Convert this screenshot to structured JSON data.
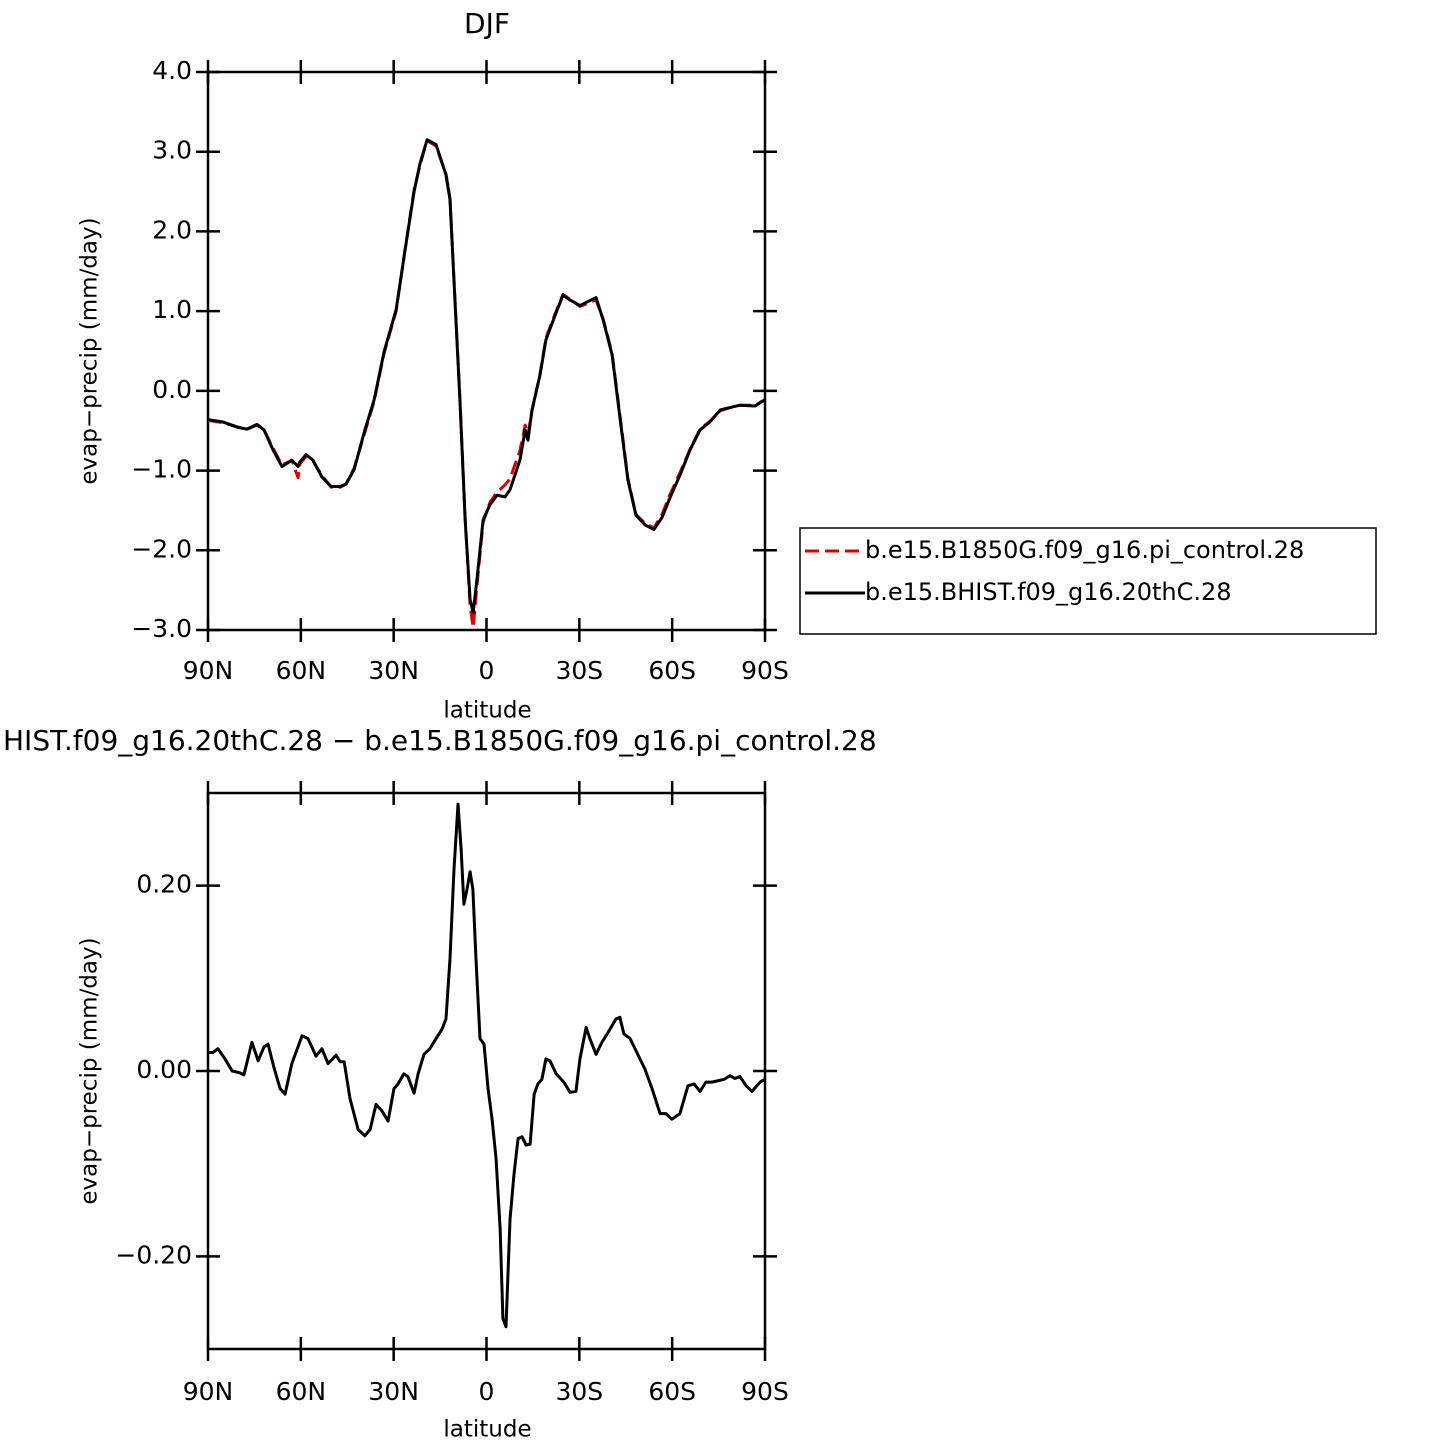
{
  "chart_data": [
    {
      "type": "line",
      "title": "DJF",
      "x_label": "latitude",
      "y_label": "evap−precip (mm/day)",
      "x": [
        90.0,
        85.2,
        80.0,
        77.4,
        74.2,
        71.9,
        69.0,
        66.1,
        62.9,
        60.9,
        60.3,
        58.3,
        56.1,
        53.2,
        50.2,
        47.3,
        45.4,
        42.8,
        39.3,
        36.3,
        33.1,
        29.2,
        26.3,
        23.4,
        21.5,
        19.2,
        16.3,
        13.1,
        11.8,
        10.2,
        8.6,
        6.9,
        5.3,
        4.3,
        3.1,
        1.1,
        -1.1,
        -3.4,
        -6.0,
        -7.6,
        -10.8,
        -12.5,
        -13.4,
        -14.7,
        -17.3,
        -19.2,
        -22.2,
        -24.7,
        -27.0,
        -30.2,
        -32.8,
        -35.4,
        -37.7,
        -40.6,
        -43.2,
        -45.7,
        -48.3,
        -51.2,
        -54.1,
        -56.7,
        -59.3,
        -62.6,
        -65.8,
        -69.0,
        -72.2,
        -75.5,
        -78.7,
        -81.9,
        -86.8,
        -90.0
      ],
      "series": [
        {
          "name": "b.e15.B1850G.f09_g16.pi_control.28",
          "color": "#e00000",
          "linestyle": "dashed",
          "values": [
            -0.37,
            -0.4,
            -0.46,
            -0.48,
            -0.43,
            -0.49,
            -0.72,
            -0.93,
            -0.87,
            -1.09,
            -0.92,
            -0.82,
            -0.88,
            -1.06,
            -1.21,
            -1.21,
            -1.17,
            -0.97,
            -0.52,
            -0.13,
            0.47,
            1.0,
            1.78,
            2.52,
            2.83,
            3.14,
            3.07,
            2.72,
            2.42,
            1.15,
            -0.08,
            -1.6,
            -2.7,
            -2.97,
            -2.45,
            -1.65,
            -1.4,
            -1.27,
            -1.18,
            -1.1,
            -0.75,
            -0.43,
            -0.55,
            -0.25,
            0.21,
            0.66,
            0.97,
            1.21,
            1.15,
            1.06,
            1.1,
            1.14,
            0.9,
            0.47,
            -0.33,
            -1.1,
            -1.55,
            -1.66,
            -1.72,
            -1.55,
            -1.3,
            -1.02,
            -0.73,
            -0.48,
            -0.38,
            -0.25,
            -0.21,
            -0.18,
            -0.18,
            -0.11
          ]
        },
        {
          "name": "b.e15.BHIST.f09_g16.20thC.28",
          "color": "#000000",
          "linestyle": "solid",
          "values": [
            -0.36,
            -0.39,
            -0.46,
            -0.48,
            -0.42,
            -0.49,
            -0.74,
            -0.95,
            -0.87,
            -0.95,
            -0.89,
            -0.8,
            -0.87,
            -1.08,
            -1.2,
            -1.2,
            -1.17,
            -0.99,
            -0.49,
            -0.11,
            0.49,
            1.02,
            1.77,
            2.5,
            2.85,
            3.15,
            3.09,
            2.71,
            2.4,
            1.14,
            -0.11,
            -1.62,
            -2.62,
            -2.78,
            -2.37,
            -1.62,
            -1.43,
            -1.31,
            -1.33,
            -1.24,
            -0.87,
            -0.49,
            -0.62,
            -0.24,
            0.2,
            0.64,
            0.95,
            1.2,
            1.14,
            1.07,
            1.12,
            1.17,
            0.89,
            0.45,
            -0.36,
            -1.12,
            -1.56,
            -1.68,
            -1.74,
            -1.59,
            -1.34,
            -1.05,
            -0.74,
            -0.49,
            -0.39,
            -0.24,
            -0.21,
            -0.18,
            -0.19,
            -0.11
          ]
        }
      ],
      "xlim": [
        90,
        -90
      ],
      "xticks": [
        {
          "value": 90,
          "label": "90N"
        },
        {
          "value": 60,
          "label": "60N"
        },
        {
          "value": 30,
          "label": "30N"
        },
        0,
        {
          "value": -30,
          "label": "30S"
        },
        {
          "value": -60,
          "label": "60S"
        },
        {
          "value": -90,
          "label": "90S"
        }
      ],
      "ylim": [
        -3,
        4
      ],
      "yticks": [
        {
          "value": -3,
          "label": "−3.0"
        },
        {
          "value": -2,
          "label": "−2.0"
        },
        {
          "value": -1,
          "label": "−1.0"
        },
        {
          "value": 0,
          "label": "0.0"
        },
        {
          "value": 1,
          "label": "1.0"
        },
        {
          "value": 2,
          "label": "2.0"
        },
        {
          "value": 3,
          "label": "3.0"
        },
        {
          "value": 4,
          "label": "4.0"
        }
      ],
      "legend": "right"
    },
    {
      "type": "line",
      "title": "HIST.f09_g16.20thC.28 − b.e15.B1850G.f09_g16.pi_control.28",
      "x_label": "latitude",
      "y_label": "evap−precip (mm/day)",
      "x": [
        90.0,
        88.4,
        86.8,
        84.5,
        82.2,
        79.7,
        78.4,
        75.8,
        73.8,
        71.9,
        70.6,
        68.7,
        66.7,
        65.1,
        62.9,
        59.6,
        57.7,
        55.1,
        53.2,
        51.2,
        48.6,
        47.3,
        46.0,
        44.1,
        41.5,
        39.3,
        37.6,
        35.7,
        33.8,
        31.8,
        29.9,
        28.6,
        26.7,
        25.4,
        23.4,
        22.1,
        20.2,
        18.3,
        16.3,
        14.4,
        13.1,
        11.8,
        10.5,
        9.2,
        8.2,
        7.3,
        6.3,
        5.3,
        4.4,
        3.4,
        2.1,
        0.8,
        -0.5,
        -1.8,
        -3.1,
        -4.4,
        -5.3,
        -6.3,
        -7.6,
        -8.9,
        -10.2,
        -11.5,
        -12.8,
        -14.1,
        -15.4,
        -16.6,
        -17.9,
        -19.2,
        -20.5,
        -22.5,
        -25.0,
        -27.0,
        -28.9,
        -30.2,
        -32.2,
        -33.4,
        -35.4,
        -37.3,
        -39.9,
        -41.8,
        -43.1,
        -44.4,
        -46.4,
        -48.3,
        -51.2,
        -53.5,
        -56.1,
        -58.0,
        -59.9,
        -62.5,
        -65.1,
        -67.1,
        -69.0,
        -70.9,
        -72.9,
        -75.5,
        -76.8,
        -78.7,
        -80.3,
        -81.9,
        -83.9,
        -85.8,
        -88.4,
        -90.0
      ],
      "series": [
        {
          "color": "#000000",
          "linestyle": "solid",
          "values": [
            0.02,
            0.02,
            0.024,
            0.013,
            0.0,
            -0.002,
            -0.004,
            0.031,
            0.011,
            0.026,
            0.029,
            0.004,
            -0.019,
            -0.025,
            0.008,
            0.038,
            0.035,
            0.016,
            0.024,
            0.008,
            0.017,
            0.01,
            0.01,
            -0.03,
            -0.063,
            -0.07,
            -0.063,
            -0.036,
            -0.043,
            -0.054,
            -0.019,
            -0.014,
            -0.003,
            -0.006,
            -0.024,
            -0.003,
            0.018,
            0.024,
            0.035,
            0.045,
            0.056,
            0.121,
            0.218,
            0.288,
            0.239,
            0.18,
            0.196,
            0.215,
            0.196,
            0.121,
            0.035,
            0.029,
            -0.019,
            -0.052,
            -0.095,
            -0.17,
            -0.267,
            -0.276,
            -0.16,
            -0.111,
            -0.073,
            -0.071,
            -0.08,
            -0.079,
            -0.025,
            -0.014,
            -0.009,
            0.013,
            0.011,
            -0.003,
            -0.012,
            -0.023,
            -0.022,
            0.013,
            0.047,
            0.035,
            0.018,
            0.031,
            0.045,
            0.056,
            0.058,
            0.04,
            0.035,
            0.022,
            0.002,
            -0.019,
            -0.046,
            -0.046,
            -0.052,
            -0.046,
            -0.016,
            -0.014,
            -0.022,
            -0.012,
            -0.012,
            -0.01,
            -0.009,
            -0.005,
            -0.008,
            -0.006,
            -0.016,
            -0.022,
            -0.012,
            -0.009
          ]
        }
      ],
      "xlim": [
        90,
        -90
      ],
      "xticks": [
        {
          "value": 90,
          "label": "90N"
        },
        {
          "value": 60,
          "label": "60N"
        },
        {
          "value": 30,
          "label": "30N"
        },
        0,
        {
          "value": -30,
          "label": "30S"
        },
        {
          "value": -60,
          "label": "60S"
        },
        {
          "value": -90,
          "label": "90S"
        }
      ],
      "ylim": [
        -0.3,
        0.3
      ],
      "yticks": [
        {
          "value": -0.2,
          "label": "−0.20"
        },
        {
          "value": 0,
          "label": "0.00"
        },
        {
          "value": 0.2,
          "label": "0.20"
        }
      ]
    }
  ]
}
